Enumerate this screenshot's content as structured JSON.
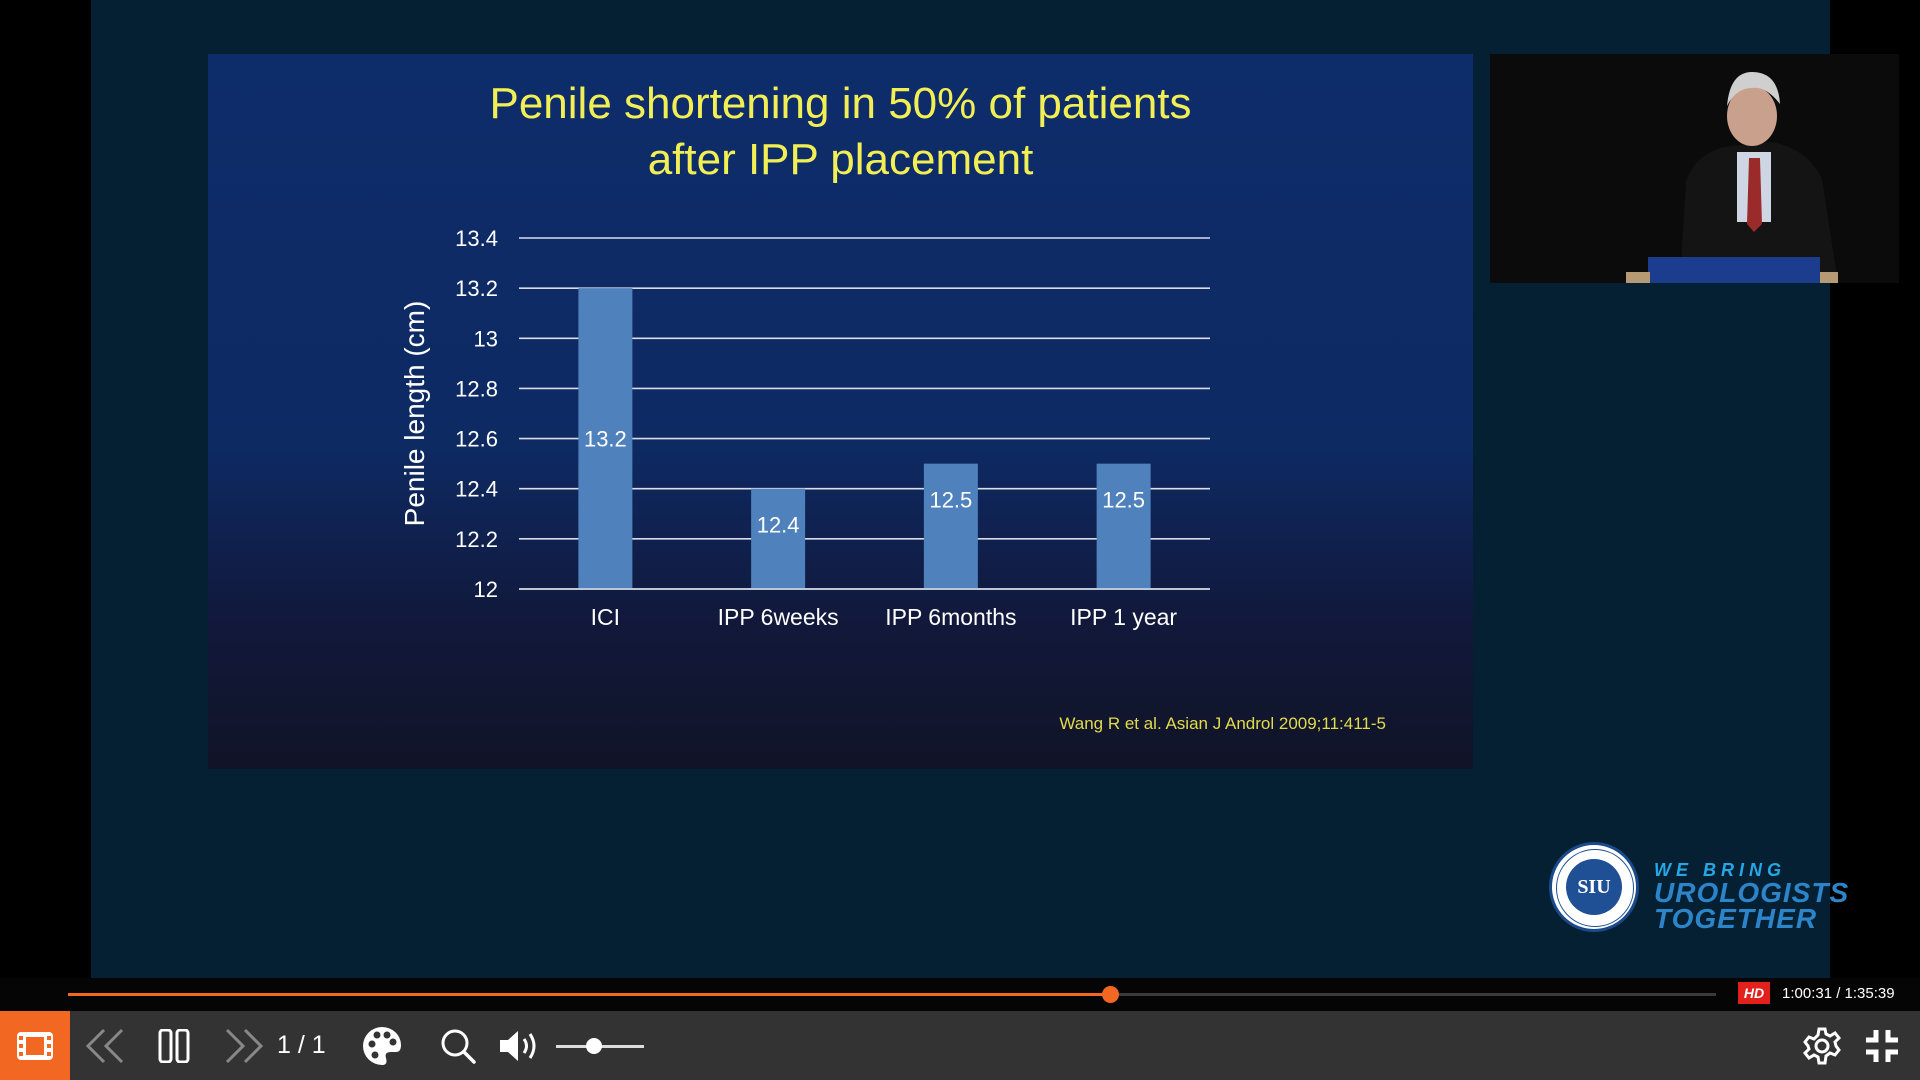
{
  "slide": {
    "title_line1": "Penile shortening in 50% of patients",
    "title_line2": "after IPP placement",
    "citation": "Wang R et al. Asian J Androl 2009;11:411-5"
  },
  "chart_data": {
    "type": "bar",
    "categories": [
      "ICI",
      "IPP 6weeks",
      "IPP 6months",
      "IPP 1 year"
    ],
    "values": [
      13.2,
      12.4,
      12.5,
      12.5
    ],
    "data_labels": [
      "13.2",
      "12.4",
      "12.5",
      "12.5"
    ],
    "ylabel": "Penile length (cm)",
    "ylim": [
      12,
      13.4
    ],
    "yticks": [
      "12",
      "12.2",
      "12.4",
      "12.6",
      "12.8",
      "13",
      "13.2",
      "13.4"
    ],
    "grid": true,
    "colors": {
      "bar": "#4f81bd",
      "grid": "#d8dde8",
      "text": "#ffffff"
    }
  },
  "logo": {
    "seal_text": "SIU",
    "tagline_line1": "WE BRING",
    "tagline_line2": "UROLOGISTS",
    "tagline_line3": "TOGETHER"
  },
  "player": {
    "hd_badge": "HD",
    "time": "1:00:31 / 1:35:39",
    "progress_fraction": 0.632,
    "page_indicator": "1 / 1",
    "volume_fraction": 0.43,
    "accent_color": "#f26722"
  },
  "icons": {
    "film": "film-strip-icon",
    "previous": "double-chevron-left-icon",
    "pause": "pause-icon",
    "next": "double-chevron-right-icon",
    "palette": "palette-icon",
    "search": "search-icon",
    "volume": "volume-icon",
    "settings": "gear-icon",
    "exit_fullscreen": "exit-fullscreen-icon"
  }
}
